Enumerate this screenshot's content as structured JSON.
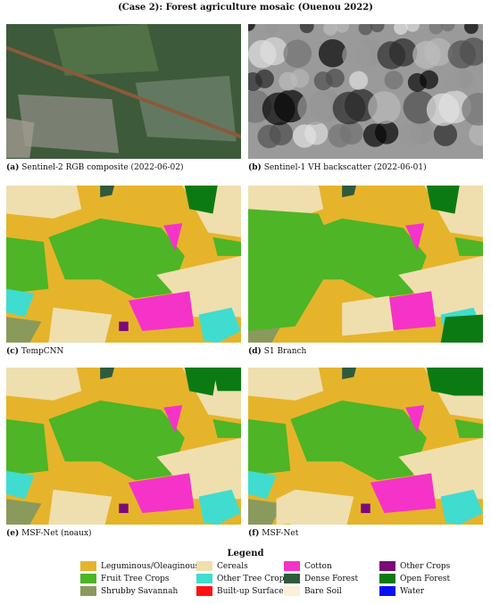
{
  "title": "(Case 2): Forest agriculture mosaic (Ouenou 2022)",
  "panels": [
    {
      "label": "(a)",
      "caption": "Sentinel-2 RGB composite (2022-06-02)"
    },
    {
      "label": "(b)",
      "caption": "Sentinel-1 VH backscatter (2022-06-01)"
    },
    {
      "label": "(c)",
      "caption": "TempCNN"
    },
    {
      "label": "(d)",
      "caption": "S1 Branch"
    },
    {
      "label": "(e)",
      "caption": "MSF-Net (noaux)"
    },
    {
      "label": "(f)",
      "caption": "MSF-Net"
    }
  ],
  "legend": {
    "title": "Legend",
    "items": [
      {
        "name": "Leguminous/Oleaginous",
        "color": "#e6b42a"
      },
      {
        "name": "Cereals",
        "color": "#efdfae"
      },
      {
        "name": "Cotton",
        "color": "#f533c8"
      },
      {
        "name": "Other Crops",
        "color": "#7a0a7a"
      },
      {
        "name": "Fruit Tree Crops",
        "color": "#4db526"
      },
      {
        "name": "Other Tree Crops",
        "color": "#40dccf"
      },
      {
        "name": "Dense Forest",
        "color": "#2f5a3c"
      },
      {
        "name": "Open Forest",
        "color": "#0c7a12"
      },
      {
        "name": "Shrubby Savannah",
        "color": "#8a9a5c"
      },
      {
        "name": "Built-up Surfaces",
        "color": "#ff1010"
      },
      {
        "name": "Bare Soil",
        "color": "#fbf0d8"
      },
      {
        "name": "Water",
        "color": "#0a10f5"
      }
    ]
  }
}
